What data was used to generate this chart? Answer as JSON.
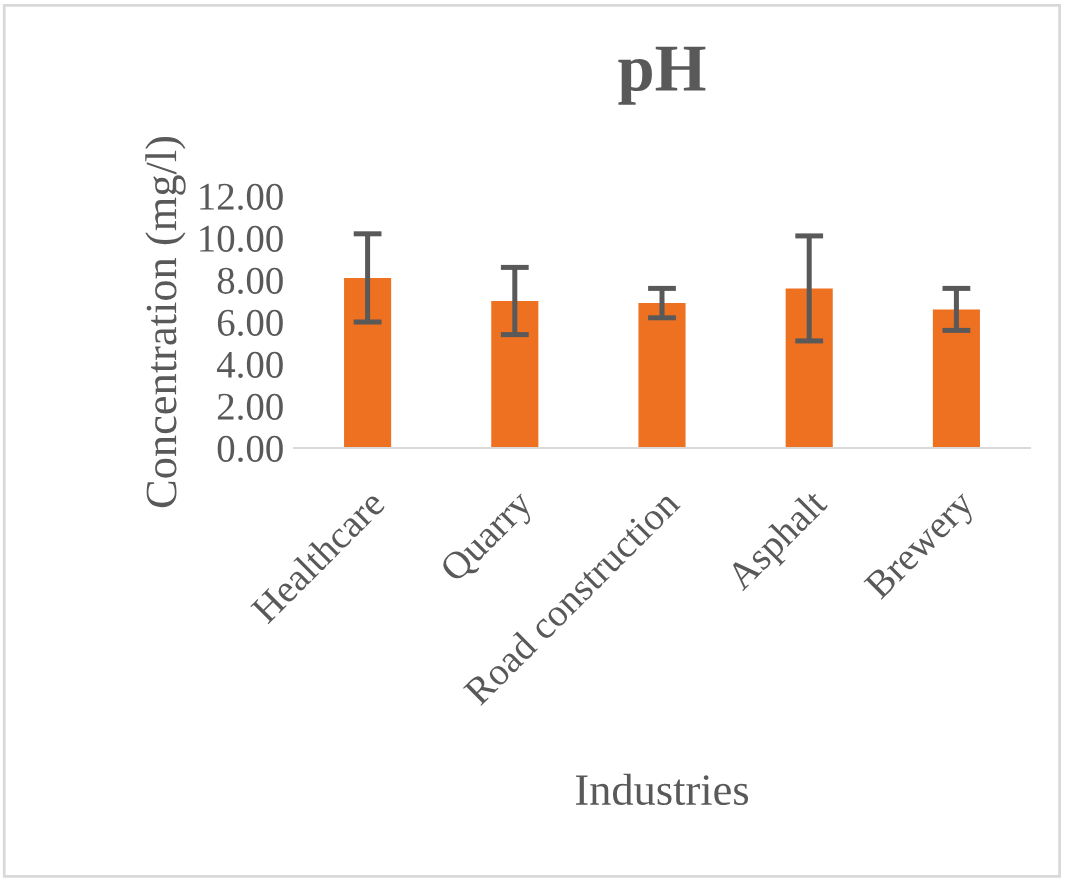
{
  "chart_data": {
    "type": "bar",
    "title": "pH",
    "xlabel": "Industries",
    "ylabel": "Concentration (mg/l)",
    "categories": [
      "Healthcare",
      "Quarry",
      "Road construction",
      "Asphalt",
      "Brewery"
    ],
    "values": [
      8.1,
      7.0,
      6.9,
      7.6,
      6.6
    ],
    "errors": [
      2.1,
      1.6,
      0.7,
      2.5,
      1.0
    ],
    "color": "#ed7120",
    "ylim": [
      0,
      12
    ],
    "yticks": [
      {
        "value": 0,
        "label": "0.00"
      },
      {
        "value": 2,
        "label": "2.00"
      },
      {
        "value": 4,
        "label": "4.00"
      },
      {
        "value": 6,
        "label": "6.00"
      },
      {
        "value": 8,
        "label": "8.00"
      },
      {
        "value": 10,
        "label": "10.00"
      },
      {
        "value": 12,
        "label": "12.00"
      }
    ],
    "grid": false,
    "legend": false
  }
}
